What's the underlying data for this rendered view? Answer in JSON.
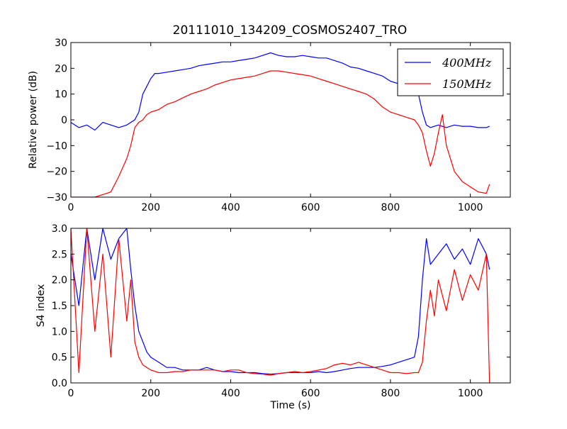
{
  "figure_title": "20111010_134209_COSMOS2407_TRO",
  "chart_data": [
    {
      "type": "line",
      "title": "20111010_134209_COSMOS2407_TRO",
      "xlabel": "",
      "ylabel": "Relative power (dB)",
      "xlim": [
        0,
        1100
      ],
      "ylim": [
        -30,
        30
      ],
      "xticks": [
        0,
        200,
        400,
        600,
        800,
        1000
      ],
      "yticks": [
        -30,
        -20,
        -10,
        0,
        10,
        20,
        30
      ],
      "legend": "top-right",
      "grid": false,
      "series": [
        {
          "name": "400MHz",
          "color": "#0000ff",
          "x": [
            0,
            20,
            40,
            60,
            80,
            100,
            120,
            140,
            150,
            160,
            170,
            180,
            190,
            200,
            210,
            220,
            240,
            260,
            280,
            300,
            320,
            340,
            360,
            380,
            400,
            420,
            440,
            460,
            480,
            500,
            520,
            540,
            560,
            580,
            600,
            620,
            640,
            660,
            680,
            700,
            720,
            740,
            760,
            780,
            800,
            820,
            840,
            860,
            870,
            880,
            890,
            900,
            920,
            940,
            960,
            980,
            1000,
            1020,
            1040,
            1048
          ],
          "y": [
            -1,
            -3,
            -2,
            -4,
            -1,
            -2,
            -3,
            -2,
            -1,
            0,
            3,
            10,
            13,
            16,
            18,
            18,
            18.5,
            19,
            19.5,
            20,
            21,
            21.5,
            22,
            22.5,
            22.5,
            23,
            23.5,
            24,
            25,
            26,
            25,
            24.5,
            24.5,
            25,
            24.5,
            24,
            24,
            23,
            22,
            20.5,
            20,
            19,
            18,
            17,
            15,
            14,
            14,
            13,
            10,
            3,
            -2,
            -3,
            -2,
            -3,
            -2,
            -2.5,
            -2.5,
            -3,
            -3,
            -2.5
          ]
        },
        {
          "name": "150MHz",
          "color": "#ff0000",
          "x": [
            0,
            20,
            40,
            60,
            80,
            100,
            120,
            140,
            150,
            160,
            170,
            180,
            190,
            200,
            220,
            240,
            260,
            280,
            300,
            320,
            340,
            360,
            380,
            400,
            420,
            440,
            460,
            480,
            500,
            520,
            540,
            560,
            580,
            600,
            620,
            640,
            660,
            680,
            700,
            720,
            740,
            760,
            780,
            800,
            820,
            840,
            860,
            870,
            880,
            890,
            900,
            910,
            920,
            930,
            940,
            960,
            980,
            1000,
            1020,
            1040,
            1048
          ],
          "y": [
            -30,
            -30,
            -30,
            -30,
            -29,
            -28,
            -22,
            -15,
            -10,
            -3,
            -1,
            0,
            2,
            3,
            4,
            6,
            7,
            8.5,
            10,
            11,
            12,
            13.5,
            14.5,
            15.5,
            16,
            16.5,
            17,
            18,
            19,
            19,
            18.5,
            18,
            17.5,
            17,
            16,
            15,
            14,
            13,
            12,
            11,
            10,
            8,
            5,
            3,
            2,
            1,
            0,
            -2,
            -5,
            -12,
            -18,
            -13,
            -5,
            2,
            -10,
            -20,
            -24,
            -26,
            -28,
            -28.5,
            -25
          ]
        }
      ]
    },
    {
      "type": "line",
      "title": "",
      "xlabel": "Time (s)",
      "ylabel": "S4 index",
      "xlim": [
        0,
        1100
      ],
      "ylim": [
        0,
        3
      ],
      "xticks": [
        0,
        200,
        400,
        600,
        800,
        1000
      ],
      "yticks": [
        0.0,
        0.5,
        1.0,
        1.5,
        2.0,
        2.5,
        3.0
      ],
      "grid": false,
      "series": [
        {
          "name": "400MHz",
          "color": "#0000ff",
          "x": [
            0,
            20,
            40,
            60,
            80,
            100,
            120,
            140,
            150,
            160,
            170,
            180,
            190,
            200,
            220,
            240,
            260,
            280,
            300,
            320,
            340,
            360,
            380,
            400,
            420,
            440,
            460,
            480,
            500,
            520,
            540,
            560,
            580,
            600,
            620,
            640,
            660,
            680,
            700,
            720,
            740,
            760,
            780,
            800,
            820,
            840,
            860,
            870,
            880,
            890,
            900,
            920,
            940,
            960,
            980,
            1000,
            1020,
            1040,
            1048
          ],
          "y": [
            2.5,
            1.5,
            3.0,
            2.0,
            3.0,
            2.4,
            2.8,
            3.0,
            2.2,
            1.5,
            1.0,
            0.8,
            0.6,
            0.5,
            0.4,
            0.3,
            0.3,
            0.25,
            0.25,
            0.25,
            0.3,
            0.25,
            0.22,
            0.22,
            0.2,
            0.2,
            0.2,
            0.18,
            0.17,
            0.18,
            0.2,
            0.2,
            0.2,
            0.2,
            0.22,
            0.2,
            0.22,
            0.25,
            0.28,
            0.3,
            0.3,
            0.3,
            0.32,
            0.35,
            0.4,
            0.45,
            0.5,
            0.9,
            2.0,
            2.8,
            2.3,
            2.5,
            2.7,
            2.4,
            2.6,
            2.3,
            2.8,
            2.5,
            2.2
          ]
        },
        {
          "name": "150MHz",
          "color": "#ff0000",
          "x": [
            0,
            20,
            40,
            60,
            80,
            100,
            120,
            140,
            150,
            160,
            170,
            180,
            190,
            200,
            220,
            240,
            260,
            280,
            300,
            320,
            340,
            360,
            380,
            400,
            420,
            440,
            460,
            480,
            500,
            520,
            540,
            560,
            580,
            600,
            620,
            640,
            660,
            680,
            700,
            720,
            740,
            760,
            780,
            800,
            820,
            840,
            860,
            870,
            880,
            890,
            900,
            910,
            920,
            940,
            960,
            980,
            1000,
            1020,
            1040,
            1048
          ],
          "y": [
            3.0,
            0.2,
            3.0,
            1.0,
            2.5,
            0.5,
            2.8,
            1.2,
            2.0,
            0.8,
            0.5,
            0.35,
            0.3,
            0.25,
            0.2,
            0.2,
            0.22,
            0.22,
            0.25,
            0.25,
            0.25,
            0.25,
            0.22,
            0.25,
            0.25,
            0.2,
            0.18,
            0.17,
            0.15,
            0.18,
            0.2,
            0.22,
            0.2,
            0.22,
            0.25,
            0.28,
            0.35,
            0.38,
            0.35,
            0.4,
            0.35,
            0.3,
            0.25,
            0.2,
            0.2,
            0.18,
            0.2,
            0.2,
            0.4,
            1.2,
            1.8,
            1.3,
            2.0,
            1.4,
            2.2,
            1.6,
            2.1,
            1.8,
            2.5,
            0.0
          ]
        }
      ]
    }
  ]
}
